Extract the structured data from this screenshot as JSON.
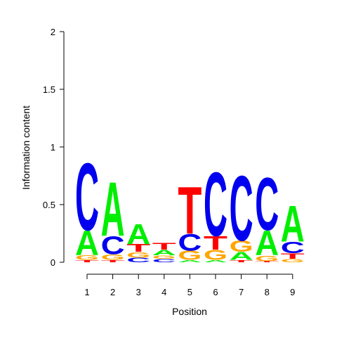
{
  "chart_data": {
    "type": "sequence-logo",
    "title": "",
    "xlabel": "Position",
    "ylabel": "Information content",
    "ylim": [
      0,
      2
    ],
    "y_ticks": [
      "0",
      "0.5",
      "1",
      "1.5",
      "2"
    ],
    "x_ticks": [
      "1",
      "2",
      "3",
      "4",
      "5",
      "6",
      "7",
      "8",
      "9"
    ],
    "colors": {
      "A": "#00ee00",
      "C": "#0000ee",
      "G": "#ffa500",
      "T": "#ff0000"
    },
    "positions": [
      {
        "position": "1",
        "stack": [
          {
            "letter": "T",
            "height": 0.02
          },
          {
            "letter": "G",
            "height": 0.04
          },
          {
            "letter": "A",
            "height": 0.22
          },
          {
            "letter": "C",
            "height": 0.6
          }
        ]
      },
      {
        "position": "2",
        "stack": [
          {
            "letter": "T",
            "height": 0.02
          },
          {
            "letter": "G",
            "height": 0.05
          },
          {
            "letter": "C",
            "height": 0.16
          },
          {
            "letter": "A",
            "height": 0.48
          }
        ]
      },
      {
        "position": "3",
        "stack": [
          {
            "letter": "C",
            "height": 0.04
          },
          {
            "letter": "G",
            "height": 0.05
          },
          {
            "letter": "T",
            "height": 0.07
          },
          {
            "letter": "A",
            "height": 0.18
          }
        ]
      },
      {
        "position": "4",
        "stack": [
          {
            "letter": "C",
            "height": 0.03
          },
          {
            "letter": "G",
            "height": 0.03
          },
          {
            "letter": "A",
            "height": 0.05
          },
          {
            "letter": "T",
            "height": 0.06
          }
        ]
      },
      {
        "position": "5",
        "stack": [
          {
            "letter": "A",
            "height": 0.02
          },
          {
            "letter": "G",
            "height": 0.08
          },
          {
            "letter": "C",
            "height": 0.15
          },
          {
            "letter": "T",
            "height": 0.42
          }
        ]
      },
      {
        "position": "6",
        "stack": [
          {
            "letter": "A",
            "height": 0.02
          },
          {
            "letter": "G",
            "height": 0.09
          },
          {
            "letter": "T",
            "height": 0.12
          },
          {
            "letter": "C",
            "height": 0.57
          }
        ]
      },
      {
        "position": "7",
        "stack": [
          {
            "letter": "T",
            "height": 0.02
          },
          {
            "letter": "A",
            "height": 0.07
          },
          {
            "letter": "G",
            "height": 0.1
          },
          {
            "letter": "C",
            "height": 0.58
          }
        ]
      },
      {
        "position": "8",
        "stack": [
          {
            "letter": "T",
            "height": 0.01
          },
          {
            "letter": "G",
            "height": 0.05
          },
          {
            "letter": "A",
            "height": 0.22
          },
          {
            "letter": "C",
            "height": 0.47
          }
        ]
      },
      {
        "position": "9",
        "stack": [
          {
            "letter": "G",
            "height": 0.03
          },
          {
            "letter": "T",
            "height": 0.05
          },
          {
            "letter": "C",
            "height": 0.1
          },
          {
            "letter": "A",
            "height": 0.32
          }
        ]
      }
    ]
  }
}
